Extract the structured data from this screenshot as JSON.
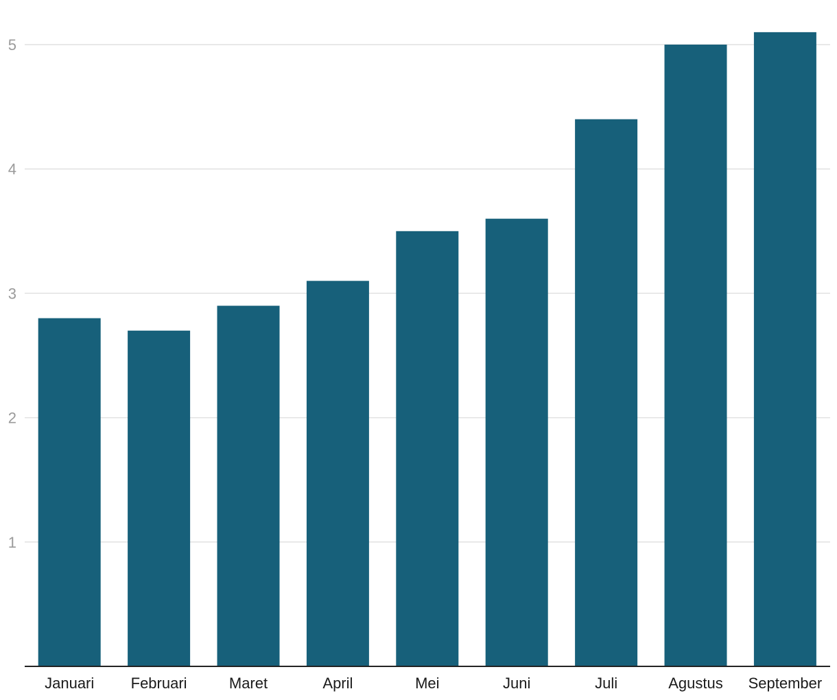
{
  "chart_data": {
    "type": "bar",
    "title": "",
    "xlabel": "",
    "ylabel": "",
    "categories": [
      "Januari",
      "Februari",
      "Maret",
      "April",
      "Mei",
      "Juni",
      "Juli",
      "Agustus",
      "September"
    ],
    "values": [
      2.8,
      2.7,
      2.9,
      3.1,
      3.5,
      3.6,
      4.4,
      5.0,
      5.1
    ],
    "ylim": [
      0,
      5.2
    ],
    "yticks": [
      1,
      2,
      3,
      4,
      5
    ],
    "grid": true,
    "legend": "none",
    "colors": {
      "bar": "#17607a",
      "grid": "#e1e1e1",
      "baseline": "#222222"
    }
  }
}
